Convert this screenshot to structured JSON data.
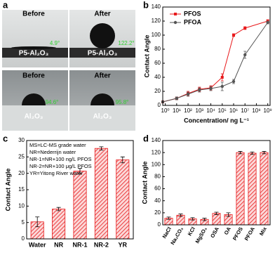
{
  "photo_panel": {
    "label": "a",
    "images": [
      {
        "caption": "Before",
        "substrate": "P5-Al₂O₃",
        "angle": "4.9°"
      },
      {
        "caption": "After",
        "substrate": "P5-Al₂O₃",
        "angle": "122.2°"
      },
      {
        "caption": "Before",
        "substrate": "Al₂O₃",
        "angle": "94.6°"
      },
      {
        "caption": "After",
        "substrate": "Al₂O₃",
        "angle": "95.8°"
      }
    ]
  },
  "chart_data": [
    {
      "label": "b",
      "type": "line",
      "xlabel": "Concentration/ ng L⁻¹",
      "ylabel": "Contact Angle",
      "xscale": "log",
      "xlim": [
        0.6,
        1600000000.0
      ],
      "ylim": [
        0,
        140
      ],
      "xticks": [
        {
          "value": 1,
          "label": "10⁰"
        },
        {
          "value": 10,
          "label": "10¹"
        },
        {
          "value": 100,
          "label": "10²"
        },
        {
          "value": 1000,
          "label": "10³"
        },
        {
          "value": 10000,
          "label": "10⁴"
        },
        {
          "value": 100000,
          "label": "10⁵"
        },
        {
          "value": 1000000,
          "label": "10⁶"
        },
        {
          "value": 10000000,
          "label": "10⁷"
        },
        {
          "value": 100000000,
          "label": "10⁸"
        },
        {
          "value": 1000000000,
          "label": "10⁹"
        }
      ],
      "yticks": [
        0,
        20,
        40,
        60,
        80,
        100,
        120,
        140
      ],
      "legend": "upper left",
      "x": [
        0.6,
        10,
        100,
        1000,
        10000,
        100000,
        1000000,
        10000000,
        1000000000
      ],
      "series": [
        {
          "name": "PFOS",
          "color": "#e8191b",
          "marker": "square",
          "values": [
            5,
            10,
            17,
            23,
            25,
            40,
            100,
            110,
            120
          ],
          "errors": [
            1,
            2,
            3,
            3,
            3,
            5,
            2,
            2,
            2
          ]
        },
        {
          "name": "PFOA",
          "color": "#555555",
          "marker": "circle",
          "values": [
            5,
            10,
            16,
            22,
            24,
            27,
            34,
            72,
            118
          ],
          "errors": [
            1,
            2,
            3,
            3,
            3,
            6,
            3,
            5,
            2
          ]
        }
      ]
    },
    {
      "label": "c",
      "type": "bar",
      "ylabel": "Contact Angle",
      "color": "#e8191b",
      "notes": [
        "MS=LC-MS grade water",
        "NR=Nederrijn water",
        "NR-1=NR+100 ng/L PFOS",
        "NR-2=NR+100 μg/L PFOS",
        "YR=Yitong River water"
      ],
      "categories": [
        "Water",
        "NR",
        "NR-1",
        "NR-2",
        "YR"
      ],
      "values": [
        5.2,
        9.1,
        20.7,
        27.6,
        24.1
      ],
      "errors": [
        1.5,
        0.5,
        0.8,
        0.5,
        0.9
      ],
      "ylim": [
        0,
        30
      ],
      "yticks": [
        0,
        5,
        10,
        15,
        20,
        25,
        30
      ]
    },
    {
      "label": "d",
      "type": "bar",
      "ylabel": "Contact Angle",
      "color": "#e8191b",
      "rotate_labels": true,
      "categories": [
        "NaCl",
        "Na₂CO₃",
        "KCl",
        "MgSO₄",
        "OSA",
        "OA",
        "PFOS",
        "PFOA",
        "Mix"
      ],
      "values": [
        11,
        16,
        10,
        9,
        19,
        17,
        120,
        119,
        120
      ],
      "errors": [
        2,
        2,
        2,
        2,
        2,
        3,
        2,
        2,
        2
      ],
      "ylim": [
        0,
        140
      ],
      "yticks": [
        0,
        20,
        40,
        60,
        80,
        100,
        120,
        140
      ]
    }
  ]
}
